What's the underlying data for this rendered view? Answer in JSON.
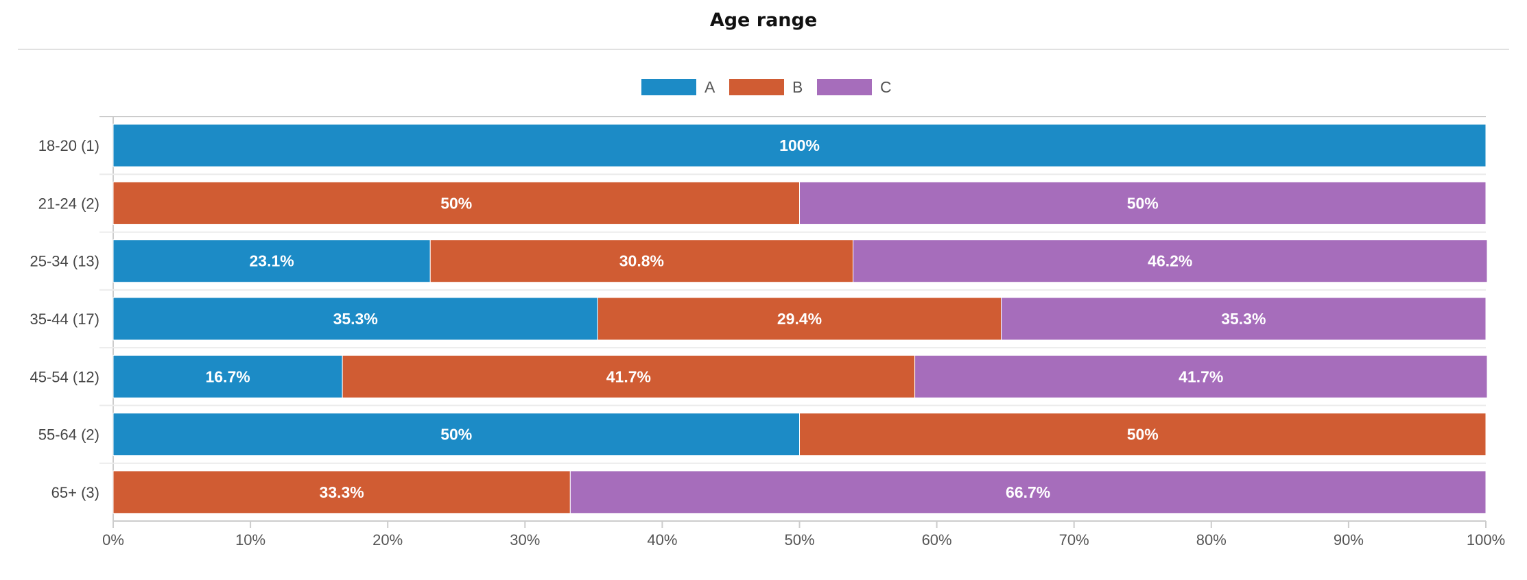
{
  "chart_data": {
    "type": "bar",
    "orientation": "horizontal",
    "stacked": true,
    "title": "Age range",
    "categories": [
      "18-20 (1)",
      "21-24 (2)",
      "25-34 (13)",
      "35-44 (17)",
      "45-54 (12)",
      "55-64 (2)",
      "65+ (3)"
    ],
    "series": [
      {
        "name": "A",
        "color": "#1c8bc6",
        "values": [
          100,
          0,
          23.1,
          35.3,
          16.7,
          50,
          0
        ],
        "labels": [
          "100%",
          "",
          "23.1%",
          "35.3%",
          "16.7%",
          "50%",
          ""
        ]
      },
      {
        "name": "B",
        "color": "#d05c33",
        "values": [
          0,
          50,
          30.8,
          29.4,
          41.7,
          50,
          33.3
        ],
        "labels": [
          "",
          "50%",
          "30.8%",
          "29.4%",
          "41.7%",
          "50%",
          "33.3%"
        ]
      },
      {
        "name": "C",
        "color": "#a66dbb",
        "values": [
          0,
          50,
          46.2,
          35.3,
          41.7,
          0,
          66.7
        ],
        "labels": [
          "",
          "50%",
          "46.2%",
          "35.3%",
          "41.7%",
          "",
          "66.7%"
        ]
      }
    ],
    "xlim": [
      0,
      100
    ],
    "x_ticks": [
      "0%",
      "10%",
      "20%",
      "30%",
      "40%",
      "50%",
      "60%",
      "70%",
      "80%",
      "90%",
      "100%"
    ],
    "legend_position": "top-center",
    "grid": false
  }
}
